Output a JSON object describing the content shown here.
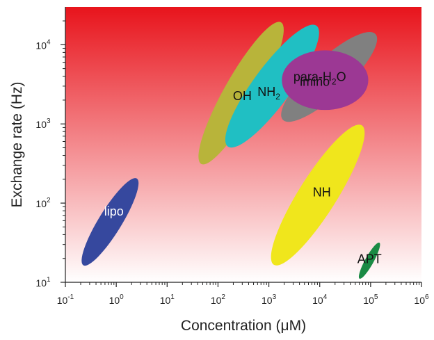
{
  "chart_data": {
    "type": "scatter",
    "xlabel": "Concentration (μM)",
    "ylabel": "Exchange rate (Hz)",
    "x_scale": "log",
    "y_scale": "log",
    "xlim": [
      0.1,
      1000000
    ],
    "ylim": [
      10,
      30000
    ],
    "x_ticks": [
      {
        "value": 0.1,
        "base": "10",
        "exp": "-1"
      },
      {
        "value": 1,
        "base": "10",
        "exp": "0"
      },
      {
        "value": 10,
        "base": "10",
        "exp": "1"
      },
      {
        "value": 100,
        "base": "10",
        "exp": "2"
      },
      {
        "value": 1000,
        "base": "10",
        "exp": "3"
      },
      {
        "value": 10000,
        "base": "10",
        "exp": "4"
      },
      {
        "value": 100000,
        "base": "10",
        "exp": "5"
      },
      {
        "value": 1000000,
        "base": "10",
        "exp": "6"
      }
    ],
    "y_ticks": [
      {
        "value": 10,
        "base": "10",
        "exp": "1"
      },
      {
        "value": 100,
        "base": "10",
        "exp": "2"
      },
      {
        "value": 1000,
        "base": "10",
        "exp": "3"
      },
      {
        "value": 10000,
        "base": "10",
        "exp": "4"
      }
    ],
    "background_gradient": {
      "top_color": "#e8141c",
      "bottom_color": "#ffffff"
    },
    "regions": [
      {
        "label": "lipo",
        "label_color": "#ffffff",
        "color": "#36489e",
        "center": {
          "x": 0.9,
          "y": 80
        },
        "x_range": [
          0.22,
          2.6
        ],
        "y_range": [
          16,
          210
        ]
      },
      {
        "label": "OH",
        "label_sub": "",
        "label_color": "#111111",
        "color": "#b8b43a",
        "center": {
          "x": 300,
          "y": 2300
        },
        "x_range": [
          45,
          1800
        ],
        "y_range": [
          300,
          20000
        ]
      },
      {
        "label": "NH",
        "label_sub": "2",
        "label_color": "#111111",
        "color": "#20bfc3",
        "center": {
          "x": 1000,
          "y": 2600
        },
        "x_range": [
          150,
          9000
        ],
        "y_range": [
          500,
          18000
        ]
      },
      {
        "label": "para-H",
        "label_sub": "2",
        "label_tail": "O",
        "label_color": "#111111",
        "color": "#808080",
        "center": {
          "x": 10000,
          "y": 4000
        },
        "x_range": [
          1800,
          130000
        ],
        "y_range": [
          1100,
          14000
        ]
      },
      {
        "label": "imino",
        "label_color": "#111111",
        "color": "#9c3894",
        "center": {
          "x": 8000,
          "y": 3500
        },
        "x_range": [
          1800,
          90000
        ],
        "y_range": [
          1500,
          8500
        ]
      },
      {
        "label": "NH",
        "label_sub": "",
        "label_color": "#111111",
        "color": "#f0e61c",
        "center": {
          "x": 11000,
          "y": 140
        },
        "x_range": [
          1200,
          70000
        ],
        "y_range": [
          16,
          1000
        ]
      },
      {
        "label": "APT",
        "label_color": "#111111",
        "color": "#1a8a44",
        "center": {
          "x": 95000,
          "y": 20
        },
        "x_range": [
          60000,
          150000
        ],
        "y_range": [
          11,
          32
        ]
      }
    ]
  }
}
